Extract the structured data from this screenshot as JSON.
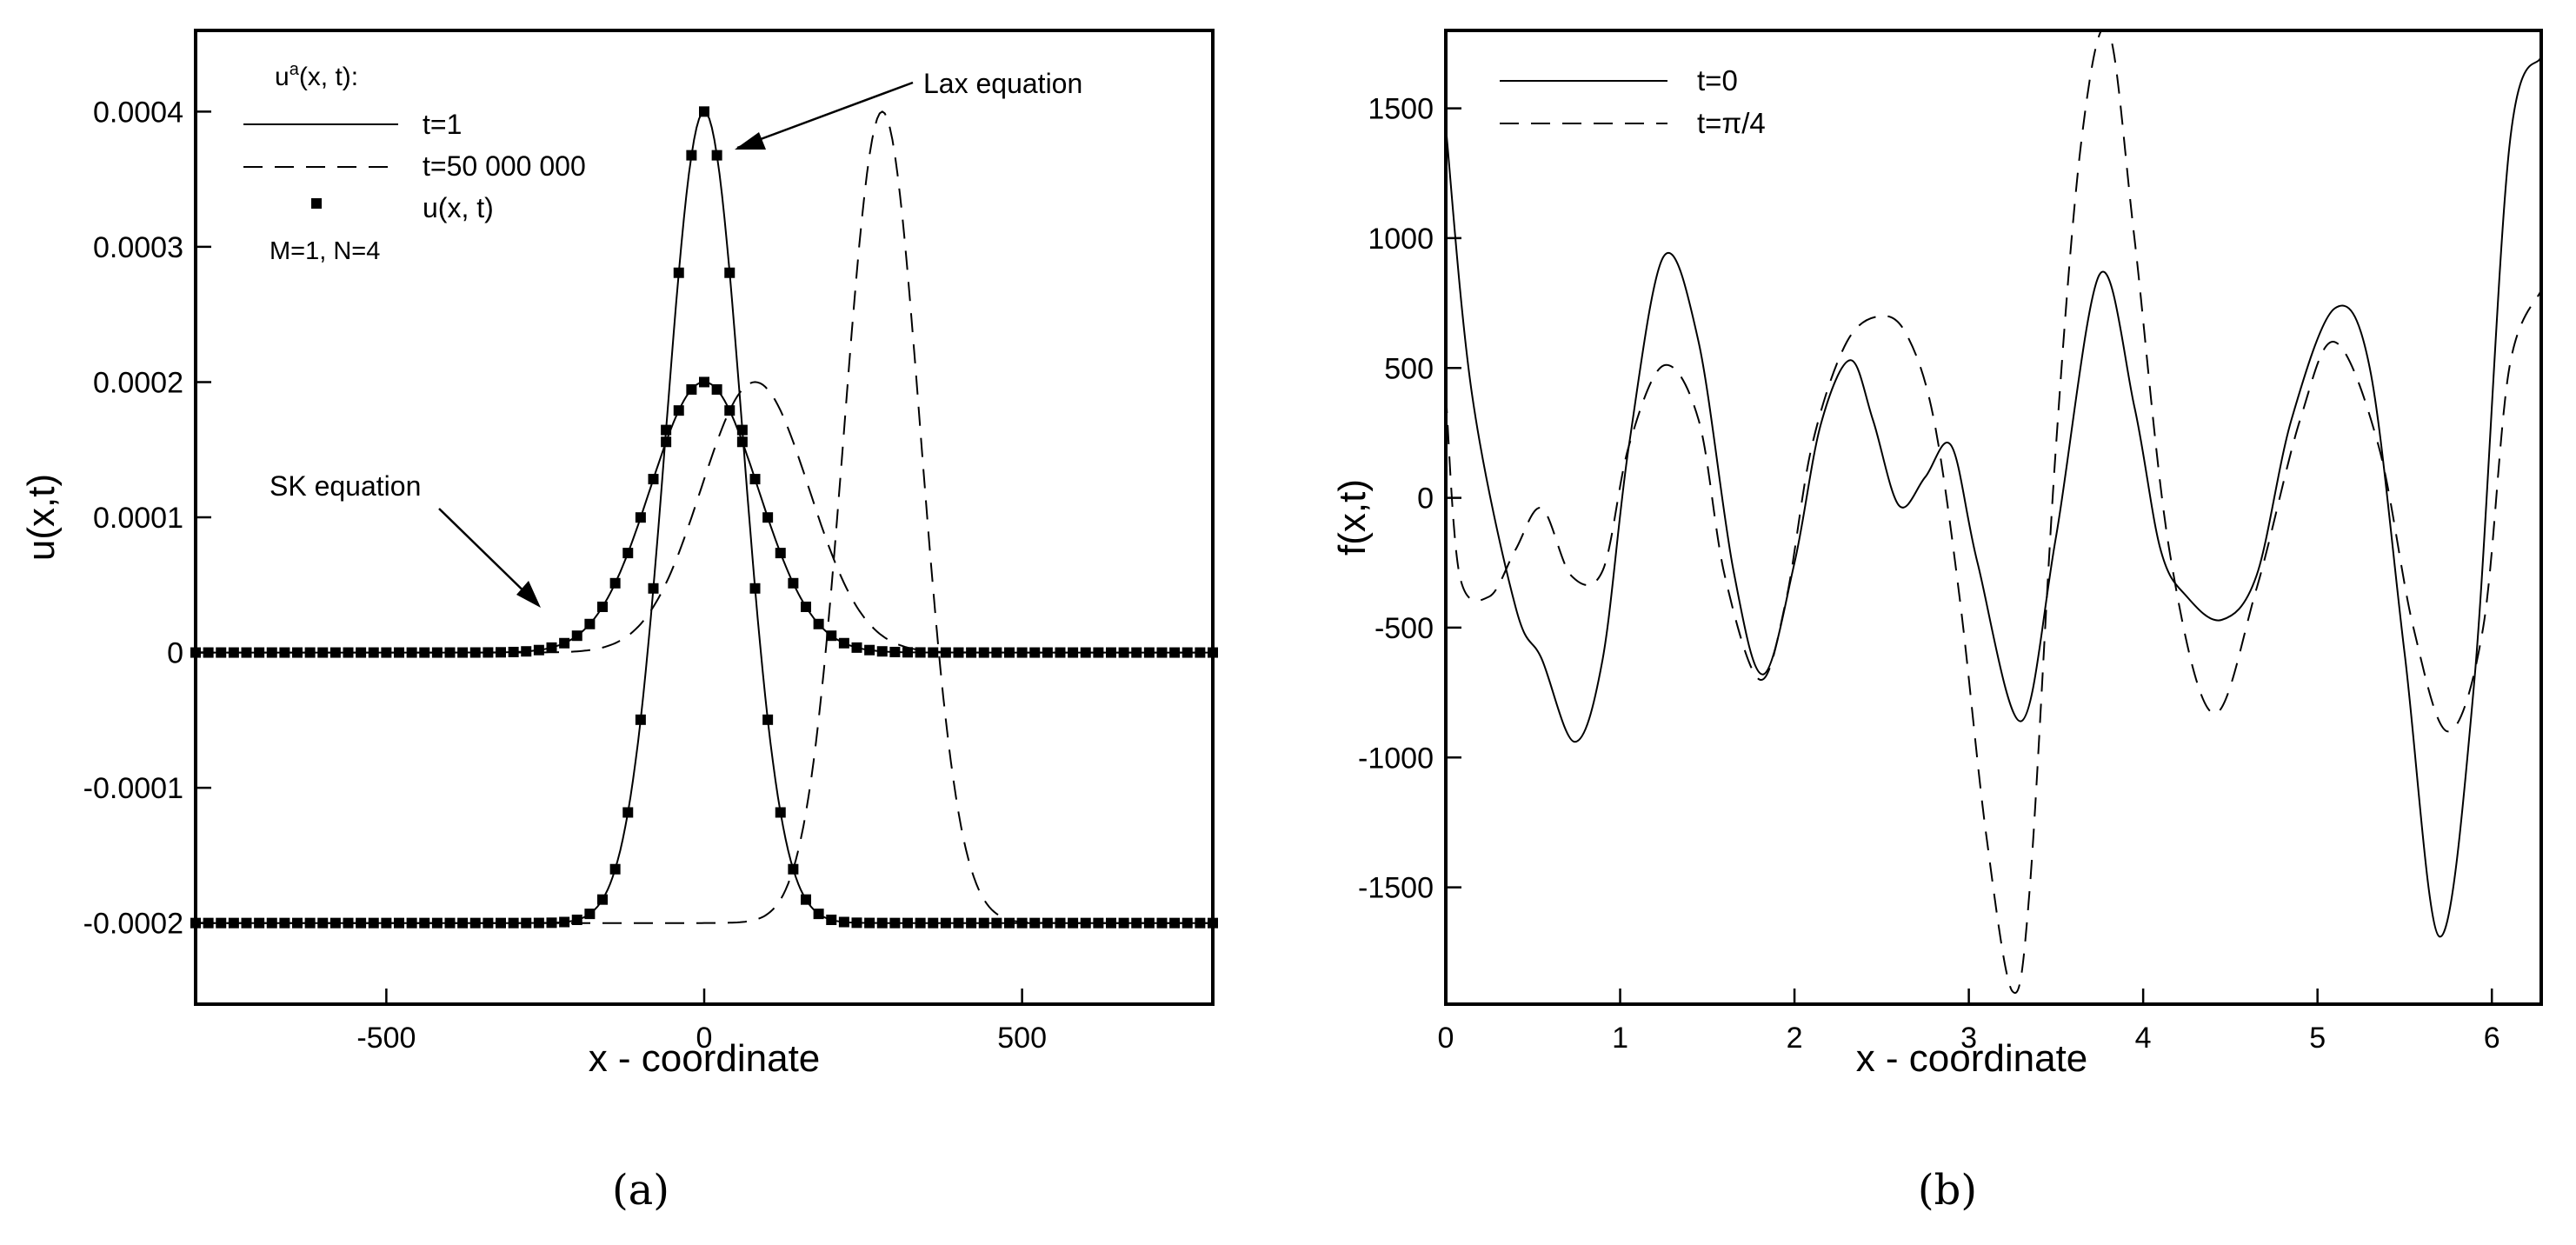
{
  "chart_data": [
    {
      "panel": "a",
      "caption": "(a)",
      "type": "line",
      "xlabel": "x - coordinate",
      "ylabel": "u(x,t)",
      "xlim": [
        -800,
        800
      ],
      "ylim": [
        -0.00026,
        0.00046
      ],
      "xticks": [
        -500,
        0,
        500
      ],
      "xtick_labels": [
        "-500",
        "0",
        "500"
      ],
      "yticks": [
        -0.0002,
        -0.0001,
        0,
        0.0001,
        0.0002,
        0.0003,
        0.0004
      ],
      "ytick_labels": [
        "-0.0002",
        "-0.0001",
        "0",
        "0.0001",
        "0.0002",
        "0.0003",
        "0.0004"
      ],
      "legend": {
        "title": "u",
        "title_sup": "a",
        "title_rest": "(x, t):",
        "entries": [
          "t=1",
          "t=50 000 000",
          "u(x, t)"
        ],
        "note": "M=1, N=4",
        "placement": "top-left"
      },
      "annotations": [
        "Lax equation",
        "SK equation"
      ],
      "series": [
        {
          "name": "t=1 (SK equation)",
          "style": "solid",
          "base": 0,
          "amplitude": 0.0002,
          "center": 0,
          "width": 120
        },
        {
          "name": "t=1 (Lax equation)",
          "style": "solid",
          "base": -0.0002,
          "amplitude": 0.0006,
          "center": 0,
          "width": 85
        },
        {
          "name": "t=50 000 000 (SK equation)",
          "style": "dashed",
          "base": 0,
          "amplitude": 0.0002,
          "center": 80,
          "width": 120
        },
        {
          "name": "t=50 000 000 (Lax equation)",
          "style": "dashed",
          "base": -0.0002,
          "amplitude": 0.0006,
          "center": 280,
          "width": 85
        },
        {
          "name": "u(x, t) (SK equation)",
          "style": "markers",
          "base": 0,
          "amplitude": 0.0002,
          "center": 0,
          "width": 120,
          "step": 20
        },
        {
          "name": "u(x, t) (Lax equation)",
          "style": "markers",
          "base": -0.0002,
          "amplitude": 0.0006,
          "center": 0,
          "width": 85,
          "step": 20
        }
      ]
    },
    {
      "panel": "b",
      "caption": "(b)",
      "type": "line",
      "xlabel": "x - coordinate",
      "ylabel": "f(x,t)",
      "xlim": [
        0,
        6.2832
      ],
      "ylim": [
        -1950,
        1800
      ],
      "xticks": [
        0,
        1,
        2,
        3,
        4,
        5,
        6
      ],
      "xtick_labels": [
        "0",
        "1",
        "2",
        "3",
        "4",
        "5",
        "6"
      ],
      "yticks": [
        -1500,
        -1000,
        -500,
        0,
        500,
        1000,
        1500
      ],
      "ytick_labels": [
        "-1500",
        "-1000",
        "-500",
        "0",
        "500",
        "1000",
        "1500"
      ],
      "legend": {
        "entries": [
          "t=0",
          "t=π/4"
        ],
        "placement": "top-left"
      },
      "series": [
        {
          "name": "t=0",
          "style": "solid",
          "x": [
            0,
            0.15,
            0.4,
            0.55,
            0.74,
            0.9,
            1.05,
            1.25,
            1.45,
            1.65,
            1.82,
            2.0,
            2.15,
            2.32,
            2.45,
            2.6,
            2.75,
            2.9,
            3.05,
            3.3,
            3.5,
            3.75,
            3.95,
            4.1,
            4.25,
            4.45,
            4.65,
            4.85,
            5.1,
            5.3,
            5.5,
            5.7,
            5.9,
            6.1,
            6.2832
          ],
          "y": [
            1430,
            400,
            -420,
            -620,
            -940,
            -620,
            200,
            930,
            600,
            -280,
            -680,
            -250,
            280,
            530,
            300,
            -30,
            80,
            200,
            -250,
            -860,
            -150,
            860,
            350,
            -200,
            -380,
            -470,
            -300,
            300,
            730,
            500,
            -600,
            -1690,
            -700,
            1350,
            1700
          ]
        },
        {
          "name": "t=π/4",
          "style": "dashed",
          "x": [
            0,
            0.08,
            0.25,
            0.4,
            0.55,
            0.72,
            0.9,
            1.05,
            1.25,
            1.45,
            1.6,
            1.8,
            1.95,
            2.1,
            2.3,
            2.5,
            2.65,
            2.8,
            2.95,
            3.1,
            3.25,
            3.35,
            3.5,
            3.65,
            3.8,
            3.95,
            4.15,
            4.4,
            4.65,
            4.9,
            5.1,
            5.35,
            5.55,
            5.75,
            5.95,
            6.1,
            6.2832
          ],
          "y": [
            400,
            -300,
            -380,
            -200,
            -40,
            -300,
            -280,
            200,
            510,
            300,
            -300,
            -700,
            -400,
            200,
            600,
            700,
            620,
            300,
            -400,
            -1300,
            -1900,
            -1500,
            200,
            1400,
            1800,
            1000,
            -200,
            -830,
            -350,
            300,
            600,
            200,
            -500,
            -900,
            -500,
            500,
            800
          ]
        }
      ]
    }
  ]
}
